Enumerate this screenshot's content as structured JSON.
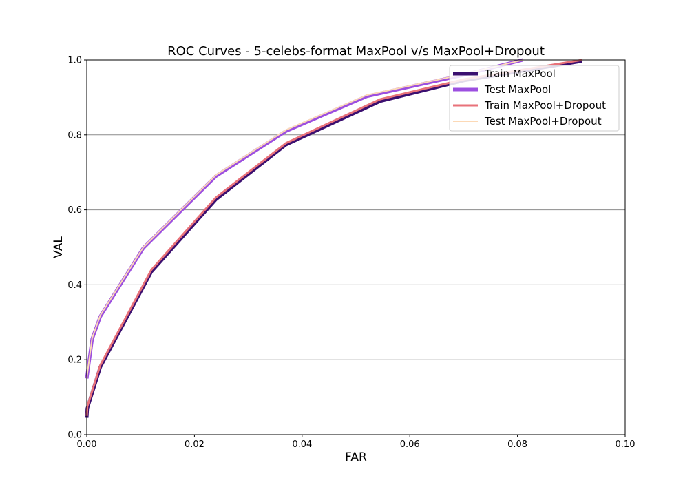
{
  "chart_data": {
    "type": "line",
    "title": "ROC Curves - 5-celebs-format MaxPool v/s MaxPool+Dropout",
    "xlabel": "FAR",
    "ylabel": "VAL",
    "xlim": [
      0,
      0.1
    ],
    "ylim": [
      0,
      1.0
    ],
    "x_ticks": [
      "0.00",
      "0.02",
      "0.04",
      "0.06",
      "0.08",
      "0.10"
    ],
    "y_ticks": [
      "0.0",
      "0.2",
      "0.4",
      "0.6",
      "0.8",
      "1.0"
    ],
    "grid": "horizontal",
    "legend_position": "top-right",
    "series": [
      {
        "name": "Train MaxPool",
        "color": "#3b0f70",
        "x": [
          0.0,
          0.0001,
          0.0025,
          0.012,
          0.024,
          0.037,
          0.0545,
          0.07,
          0.092
        ],
        "y": [
          0.045,
          0.07,
          0.18,
          0.435,
          0.628,
          0.774,
          0.89,
          0.945,
          0.997
        ]
      },
      {
        "name": "Test MaxPool",
        "color": "#9c4fe0",
        "x": [
          0.0,
          0.001,
          0.0025,
          0.0105,
          0.024,
          0.037,
          0.052,
          0.07,
          0.081
        ],
        "y": [
          0.15,
          0.255,
          0.315,
          0.498,
          0.69,
          0.81,
          0.903,
          0.96,
          1.0
        ]
      },
      {
        "name": "Train MaxPool+Dropout",
        "color": "#e8727a",
        "x": [
          0.0,
          0.0001,
          0.0025,
          0.012,
          0.024,
          0.037,
          0.0545,
          0.07,
          0.092
        ],
        "y": [
          0.05,
          0.075,
          0.185,
          0.44,
          0.633,
          0.778,
          0.895,
          0.948,
          1.0
        ]
      },
      {
        "name": "Test MaxPool+Dropout",
        "color": "#fcd9b6",
        "x": [
          0.0,
          0.001,
          0.0025,
          0.0105,
          0.024,
          0.037,
          0.052,
          0.07,
          0.081
        ],
        "y": [
          0.152,
          0.258,
          0.318,
          0.5,
          0.693,
          0.813,
          0.906,
          0.962,
          1.0
        ]
      }
    ]
  }
}
